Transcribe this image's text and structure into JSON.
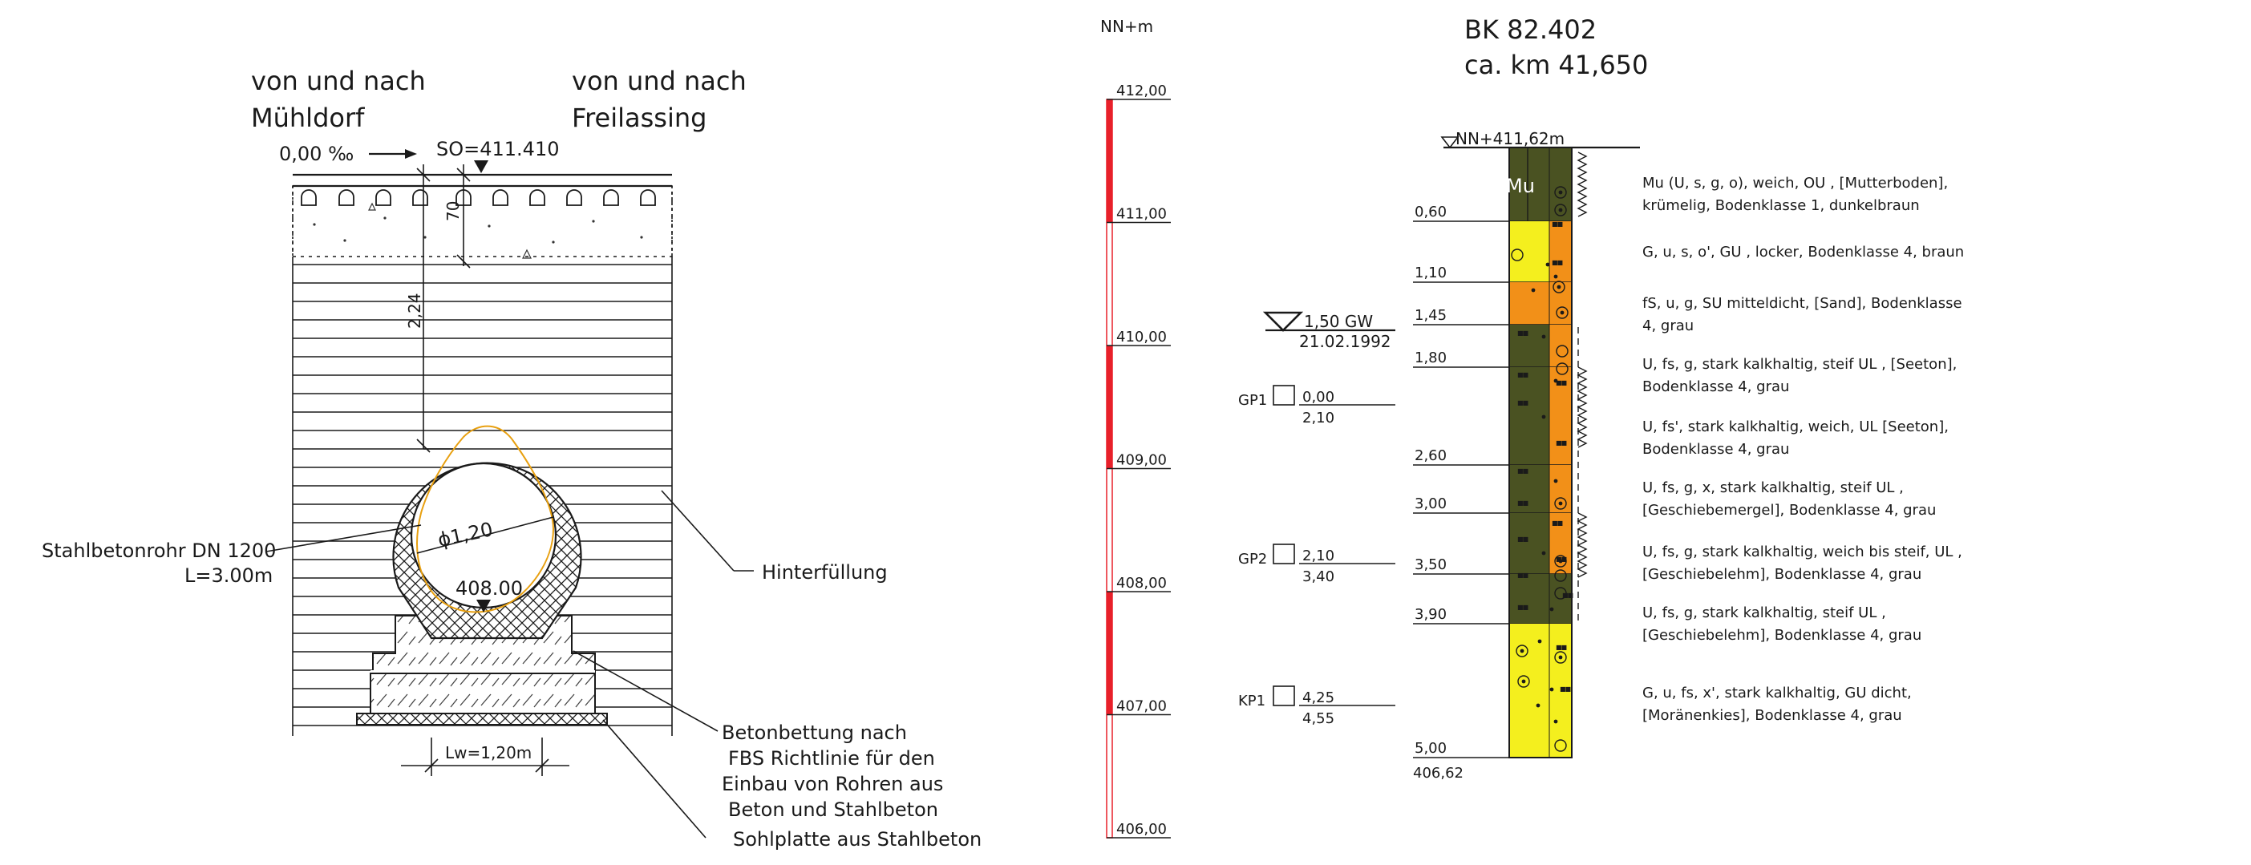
{
  "section": {
    "left_dir_line1": "von und nach",
    "left_dir_line2": "Mühldorf",
    "right_dir_line1": "von und nach",
    "right_dir_line2": "Freilassing",
    "gradient": "0,00 ‰",
    "so_label": "SO=411.410",
    "dim_70": "70",
    "dim_224": "2,24",
    "diameter": "ϕ1,20",
    "invert": "408.00",
    "lw": "Lw=1,20m",
    "pipe_label_line1": "Stahlbetonrohr DN 1200",
    "pipe_label_line2": "L=3.00m",
    "backfill_label": "Hinterfüllung",
    "bedding_line1": "Betonbettung nach",
    "bedding_line2": "FBS Richtlinie für den",
    "bedding_line3": "Einbau von Rohren aus",
    "bedding_line4": "Beton und Stahlbeton",
    "base_plate": "Sohlplatte aus Stahlbeton"
  },
  "scale": {
    "unit_label": "NN+m",
    "ticks": [
      "412,00",
      "411,00",
      "410,00",
      "409,00",
      "408,00",
      "407,00",
      "406,00"
    ],
    "red_fill_color": "#e8202a"
  },
  "borehole": {
    "id": "BK 82.402",
    "km": "ca. km 41,650",
    "top_label": "NN+411,62m",
    "depths": [
      "0,60",
      "1,10",
      "1,45",
      "1,80",
      "2,60",
      "3,00",
      "3,50",
      "3,90",
      "5,00"
    ],
    "bottom_elev": "406,62",
    "top_layer_code": "Mu",
    "groundwater": {
      "label": "1,50 GW",
      "date": "21.02.1992"
    },
    "samples": [
      {
        "name": "GP1",
        "from": "0,00",
        "to": "2,10"
      },
      {
        "name": "GP2",
        "from": "2,10",
        "to": "3,40"
      },
      {
        "name": "KP1",
        "from": "4,25",
        "to": "4,55"
      }
    ],
    "colors": {
      "olive": "#4a5222",
      "yellow": "#f4ef1e",
      "orange": "#f29018"
    },
    "descriptions": [
      {
        "line1": "Mu (U, s, g, o), weich, OU , [Mutterboden],",
        "line2": "krümelig, Bodenklasse 1, dunkelbraun"
      },
      {
        "line1": "G, u, s, o', GU , locker, Bodenklasse 4, braun",
        "line2": ""
      },
      {
        "line1": "fS, u, g, SU  mitteldicht, [Sand], Bodenklasse",
        "line2": "4, grau"
      },
      {
        "line1": "U, fs, g, stark kalkhaltig, steif UL , [Seeton],",
        "line2": "Bodenklasse 4, grau"
      },
      {
        "line1": "U, fs', stark kalkhaltig, weich, UL  [Seeton],",
        "line2": "Bodenklasse 4, grau"
      },
      {
        "line1": "U, fs, g, x, stark kalkhaltig, steif UL ,",
        "line2": "[Geschiebemergel], Bodenklasse 4, grau"
      },
      {
        "line1": "U, fs, g, stark kalkhaltig, weich bis steif, UL ,",
        "line2": "[Geschiebelehm], Bodenklasse 4, grau"
      },
      {
        "line1": "U, fs, g, stark kalkhaltig, steif UL ,",
        "line2": "[Geschiebelehm], Bodenklasse 4, grau"
      },
      {
        "line1": "G, u, fs, x', stark kalkhaltig, GU  dicht,",
        "line2": "[Moränenkies], Bodenklasse 4, grau"
      }
    ]
  }
}
